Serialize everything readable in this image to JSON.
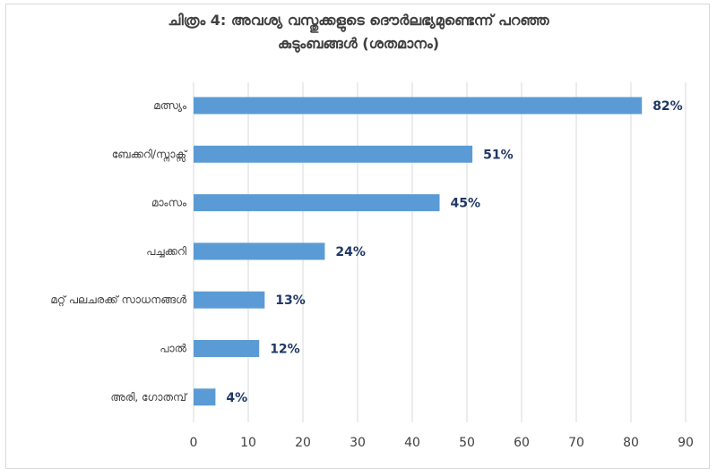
{
  "chart_data": {
    "type": "bar",
    "orientation": "horizontal",
    "title_line1": "ചിത്രം 4: അവശ്യ വസ്തുക്കളുടെ ദൌർലഭ്യമുണ്ടെന്ന് പറഞ്ഞ",
    "title_line2": "കുടുംബങ്ങൾ (ശതമാനം)",
    "categories": [
      "മത്സ്യം",
      "ബേക്കറി/സ്നാക്സ്",
      "മാംസം",
      "പച്ചക്കറി",
      "മറ്റ് പലചരക്ക് സാധനങ്ങൾ",
      "പാൽ",
      "അരി, ഗോതമ്പ്"
    ],
    "values": [
      82,
      51,
      45,
      24,
      13,
      12,
      4
    ],
    "value_labels": [
      "82%",
      "51%",
      "45%",
      "24%",
      "13%",
      "12%",
      "4%"
    ],
    "xlim": [
      0,
      90
    ],
    "xticks": [
      0,
      10,
      20,
      30,
      40,
      50,
      60,
      70,
      80,
      90
    ],
    "grid": "vertical",
    "bar_color": "#5b9bd5",
    "label_color": "#1f3864",
    "grid_color": "#d9d9d9"
  }
}
